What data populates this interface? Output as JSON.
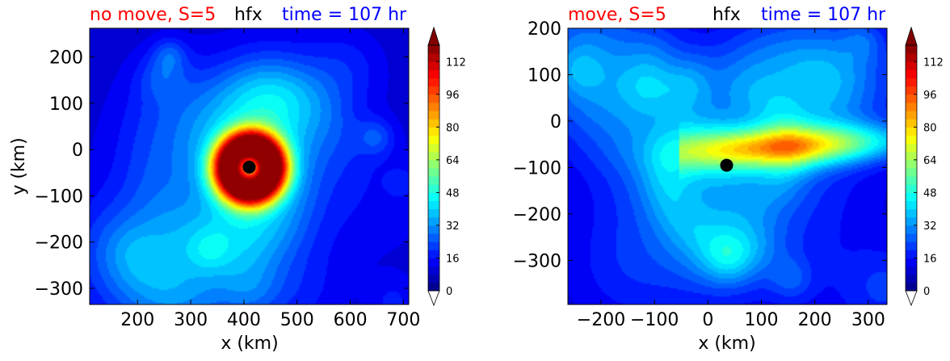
{
  "chart_data": [
    {
      "type": "heatmap",
      "title_left": "no move, S=5",
      "title_center": "hfx",
      "title_right": "time = 107 hr",
      "title_colors": [
        "#ff0000",
        "#000000",
        "#0000ff"
      ],
      "xlabel": "x (km)",
      "ylabel": "y (km)",
      "xlim": [
        110,
        710
      ],
      "ylim": [
        -335,
        262
      ],
      "xticks": [
        200,
        300,
        400,
        500,
        600,
        700
      ],
      "xtick_labels": [
        "200",
        "300",
        "400",
        "500",
        "600",
        "700"
      ],
      "yticks": [
        -300,
        -200,
        -100,
        0,
        100,
        200
      ],
      "ytick_labels": [
        "−300",
        "−200",
        "−100",
        "0",
        "100",
        "200"
      ],
      "field_max_approx": 104,
      "marker": {
        "x": 410,
        "y": -38
      },
      "colorbar": {
        "min": 0,
        "max": 120,
        "step": 4,
        "extend": "both",
        "cmap": "jet",
        "ticks": [
          0,
          16,
          32,
          48,
          64,
          80,
          96,
          112
        ],
        "tick_labels": [
          "0",
          "16",
          "32",
          "48",
          "64",
          "80",
          "96",
          "112"
        ]
      }
    },
    {
      "type": "heatmap",
      "title_left": "move, S=5",
      "title_center": "hfx",
      "title_right": "time = 107 hr",
      "title_colors": [
        "#ff0000",
        "#000000",
        "#0000ff"
      ],
      "xlabel": "x (km)",
      "ylabel": "",
      "xlim": [
        -262,
        335
      ],
      "ylim": [
        -395,
        200
      ],
      "xticks": [
        -200,
        -100,
        0,
        100,
        200,
        300
      ],
      "xtick_labels": [
        "−200",
        "−100",
        "0",
        "100",
        "200",
        "300"
      ],
      "yticks": [
        -300,
        -200,
        -100,
        0,
        100,
        200
      ],
      "ytick_labels": [
        "−300",
        "−200",
        "−100",
        "0",
        "100",
        "200"
      ],
      "field_max_approx": 72,
      "marker": {
        "x": 35,
        "y": -95
      },
      "colorbar": {
        "min": 0,
        "max": 120,
        "step": 4,
        "extend": "both",
        "cmap": "jet",
        "ticks": [
          0,
          16,
          32,
          48,
          64,
          80,
          96,
          112
        ],
        "tick_labels": [
          "0",
          "16",
          "32",
          "48",
          "64",
          "80",
          "96",
          "112"
        ]
      }
    }
  ]
}
